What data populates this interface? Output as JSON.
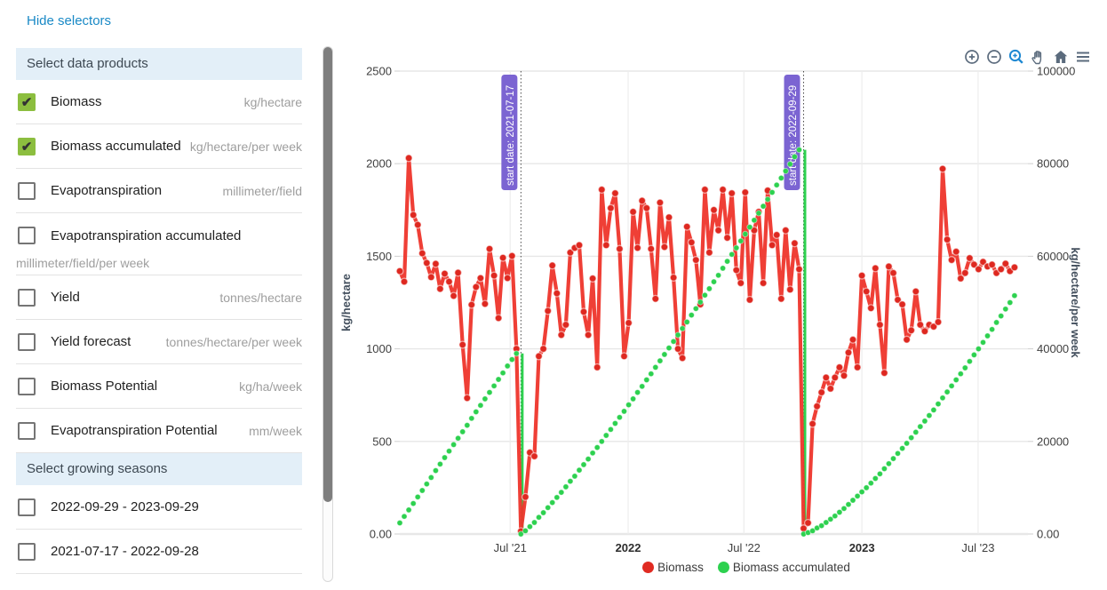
{
  "sidebar": {
    "hide_selectors": "Hide selectors",
    "sections": [
      {
        "title": "Select data products",
        "items": [
          {
            "label": "Biomass",
            "unit": "kg/hectare",
            "checked": true
          },
          {
            "label": "Biomass accumulated",
            "unit": "kg/hectare/per week",
            "checked": true
          },
          {
            "label": "Evapotranspiration",
            "unit": "millimeter/field",
            "checked": false
          },
          {
            "label": "Evapotranspiration accumulated",
            "unit": "millimeter/field/per week",
            "checked": false
          },
          {
            "label": "Yield",
            "unit": "tonnes/hectare",
            "checked": false
          },
          {
            "label": "Yield forecast",
            "unit": "tonnes/hectare/per week",
            "checked": false
          },
          {
            "label": "Biomass Potential",
            "unit": "kg/ha/week",
            "checked": false
          },
          {
            "label": "Evapotranspiration Potential",
            "unit": "mm/week",
            "checked": false
          }
        ]
      },
      {
        "title": "Select growing seasons",
        "items": [
          {
            "label": "2022-09-29 - 2023-09-29",
            "checked": false
          },
          {
            "label": "2021-07-17 - 2022-09-28",
            "checked": false
          }
        ]
      }
    ]
  },
  "modebar": {
    "buttons": [
      "zoom-in",
      "zoom-out",
      "box-zoom",
      "pan",
      "reset-view",
      "menu"
    ],
    "active": "box-zoom",
    "icon_color": "#5b6b7d",
    "active_color": "#1e88d2"
  },
  "chart_data": {
    "type": "line",
    "x_start_date": "2021-01-10",
    "x_interval_days": 7,
    "grid": true,
    "legend_position": "bottom-center",
    "left_axis": {
      "title": "kg/hectare",
      "range": [
        0,
        2500
      ],
      "ticks": [
        {
          "label": "0.00",
          "value": 0
        },
        {
          "label": "500",
          "value": 500
        },
        {
          "label": "1000",
          "value": 1000
        },
        {
          "label": "1500",
          "value": 1500
        },
        {
          "label": "2000",
          "value": 2000
        },
        {
          "label": "2500",
          "value": 2500
        }
      ]
    },
    "right_axis": {
      "title": "kg/hectare/per week",
      "range": [
        0,
        100000
      ],
      "ticks": [
        {
          "label": "0.00",
          "value": 0
        },
        {
          "label": "20000",
          "value": 20000
        },
        {
          "label": "40000",
          "value": 40000
        },
        {
          "label": "60000",
          "value": 60000
        },
        {
          "label": "80000",
          "value": 80000
        },
        {
          "label": "100000",
          "value": 100000
        }
      ]
    },
    "x_axis": {
      "ticks": [
        {
          "label": "Jul '21",
          "week": 24.6,
          "bold": false
        },
        {
          "label": "2022",
          "week": 50.9,
          "bold": true
        },
        {
          "label": "Jul '22",
          "week": 76.7,
          "bold": false
        },
        {
          "label": "2023",
          "week": 103.0,
          "bold": true
        },
        {
          "label": "Jul '23",
          "week": 128.9,
          "bold": false
        }
      ]
    },
    "annotations": [
      {
        "label": "start date: 2021-07-17",
        "week": 27,
        "color": "#7b64d2"
      },
      {
        "label": "start date: 2022-09-29",
        "week": 90,
        "color": "#7b64d2"
      }
    ],
    "legend": [
      {
        "label": "Biomass",
        "color": "#e02b22"
      },
      {
        "label": "Biomass accumulated",
        "color": "#2dd14f"
      }
    ],
    "series": [
      {
        "name": "Biomass",
        "axis": "left",
        "unit": "kg/hectare",
        "color": "#ee352b",
        "marker_color": "#de2820",
        "style": "line+markers",
        "values": [
          1420,
          1363,
          2030,
          1723,
          1670,
          1516,
          1464,
          1387,
          1459,
          1324,
          1406,
          1363,
          1286,
          1411,
          1022,
          734,
          1238,
          1334,
          1382,
          1243,
          1540,
          1396,
          1166,
          1492,
          1382,
          1502,
          1000,
          15,
          200,
          440,
          420,
          960,
          1000,
          1205,
          1450,
          1300,
          1075,
          1130,
          1520,
          1545,
          1560,
          1200,
          1075,
          1380,
          900,
          1860,
          1560,
          1760,
          1840,
          1540,
          960,
          1140,
          1740,
          1545,
          1800,
          1760,
          1540,
          1270,
          1790,
          1550,
          1710,
          1385,
          1000,
          950,
          1660,
          1575,
          1480,
          1240,
          1860,
          1520,
          1750,
          1640,
          1860,
          1600,
          1840,
          1425,
          1355,
          1845,
          1265,
          1640,
          1740,
          1355,
          1855,
          1560,
          1615,
          1270,
          1640,
          1320,
          1570,
          1430,
          30,
          60,
          595,
          690,
          765,
          845,
          785,
          845,
          900,
          855,
          980,
          1050,
          900,
          1396,
          1310,
          1220,
          1435,
          1130,
          870,
          1445,
          1410,
          1265,
          1240,
          1050,
          1100,
          1310,
          1130,
          1095,
          1130,
          1120,
          1145,
          1972,
          1590,
          1480,
          1525,
          1380,
          1410,
          1490,
          1455,
          1430,
          1470,
          1445,
          1455,
          1410,
          1430,
          1460,
          1420,
          1440
        ]
      },
      {
        "name": "Biomass accumulated",
        "axis": "right",
        "unit": "kg/hectare/per week",
        "color": "#2dd14f",
        "marker_color": "#2dd14f",
        "style": "markers",
        "values": [
          2400,
          3800,
          5200,
          6600,
          8000,
          9400,
          10800,
          12200,
          13700,
          15100,
          16500,
          17900,
          19300,
          20700,
          22100,
          23500,
          25000,
          26400,
          27800,
          29200,
          30600,
          32000,
          33400,
          34800,
          36300,
          37700,
          39000,
          0,
          700,
          1600,
          2500,
          3600,
          4600,
          5700,
          6800,
          7900,
          9000,
          10200,
          11400,
          12500,
          13800,
          15000,
          16200,
          17500,
          18700,
          20000,
          21300,
          22600,
          23900,
          25200,
          26500,
          27900,
          29200,
          30600,
          31900,
          33300,
          34600,
          36000,
          37400,
          38800,
          40200,
          41600,
          43000,
          44400,
          45800,
          47300,
          48700,
          50100,
          51600,
          53000,
          54500,
          55900,
          57400,
          58900,
          60400,
          61800,
          63300,
          64800,
          66300,
          67800,
          69300,
          70800,
          72300,
          73800,
          75400,
          76900,
          78400,
          79900,
          81500,
          83000,
          0,
          300,
          700,
          1300,
          1800,
          2500,
          3200,
          3900,
          4700,
          5500,
          6400,
          7300,
          8200,
          9100,
          10000,
          11000,
          12000,
          13000,
          14100,
          15200,
          16300,
          17400,
          18500,
          19600,
          20800,
          22000,
          23200,
          24400,
          25600,
          26800,
          28100,
          29400,
          30700,
          32000,
          33300,
          34600,
          35900,
          37300,
          38700,
          40000,
          41400,
          42800,
          44200,
          45700,
          47100,
          48600,
          50000,
          51500
        ]
      }
    ]
  },
  "colors": {
    "accent_blue": "#1989c6",
    "biomass_red": "#ee352b",
    "accumulated_green": "#2dd14f",
    "annotation_purple": "#7b64d2",
    "checkbox_green": "#8cbe3f",
    "section_header_bg": "#e3eff8"
  }
}
